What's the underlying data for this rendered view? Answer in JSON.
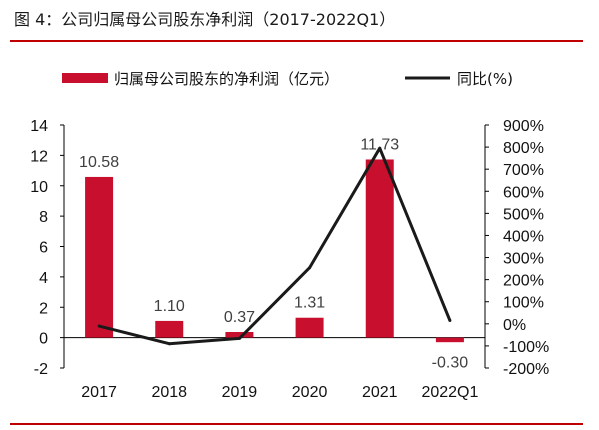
{
  "figure": {
    "title": "图 4：公司归属母公司股东净利润（2017-2022Q1）"
  },
  "colors": {
    "bar": "#c8102e",
    "line": "#1a1a1a",
    "rule": "#c00000"
  },
  "chart_data": {
    "type": "bar",
    "categories": [
      "2017",
      "2018",
      "2019",
      "2020",
      "2021",
      "2022Q1"
    ],
    "series": [
      {
        "name": "归属母公司股东的净利润（亿元）",
        "type": "bar",
        "axis": "left",
        "values": [
          10.58,
          1.1,
          0.37,
          1.31,
          11.73,
          -0.3
        ],
        "labels": [
          "10.58",
          "1.10",
          "0.37",
          "1.31",
          "11.73",
          "-0.30"
        ]
      },
      {
        "name": "同比(%)",
        "type": "line",
        "axis": "right",
        "values": [
          -10,
          -90,
          -66,
          254,
          795,
          15
        ]
      }
    ],
    "y_left": {
      "ylim": [
        -2,
        14
      ],
      "ticks": [
        "-2",
        "0",
        "2",
        "4",
        "6",
        "8",
        "10",
        "12",
        "14"
      ]
    },
    "y_right": {
      "ylim": [
        -200,
        900
      ],
      "ticks": [
        "-200%",
        "-100%",
        "0%",
        "100%",
        "200%",
        "300%",
        "400%",
        "500%",
        "600%",
        "700%",
        "800%",
        "900%"
      ]
    },
    "legend": "top"
  }
}
